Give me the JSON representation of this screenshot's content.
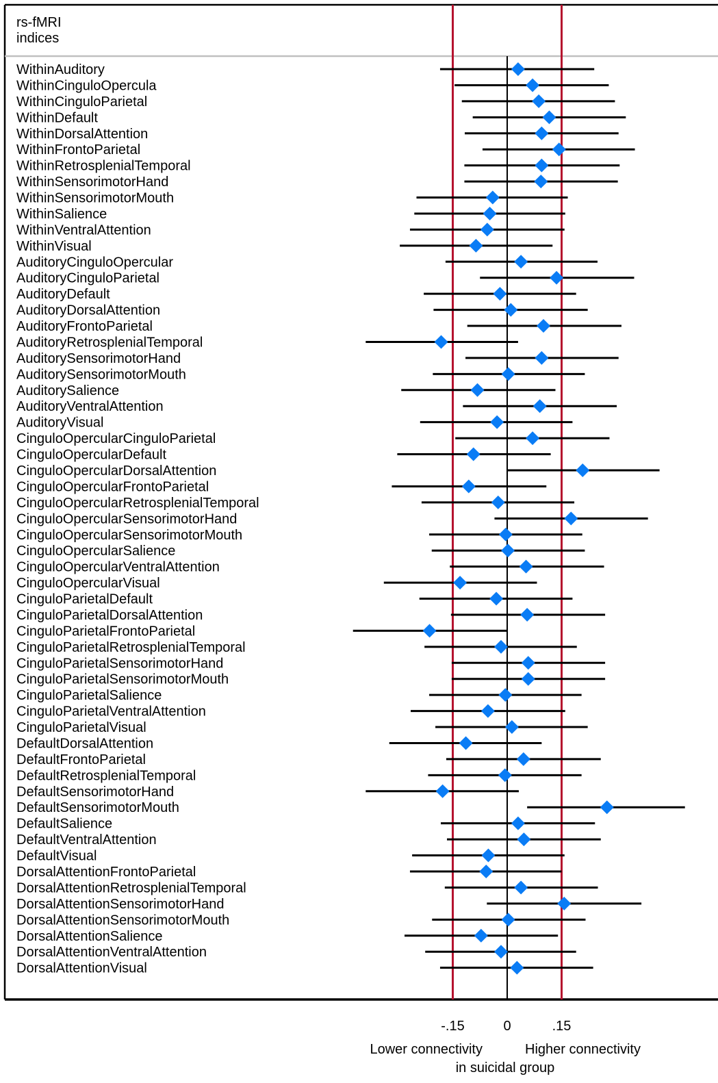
{
  "chart_data": {
    "type": "forest",
    "header": [
      "rs-fMRI",
      "indices"
    ],
    "xlim": [
      -0.405,
      0.5
    ],
    "reference_lines": [
      -0.15,
      0.15
    ],
    "zero_line": 0,
    "x_ticks": [
      "-.15",
      "0",
      ".15"
    ],
    "x_tick_values": [
      -0.15,
      0,
      0.15
    ],
    "annotations": {
      "left": "Lower connectivity",
      "right": "Higher connectivity",
      "bottom": "in suicidal group"
    },
    "colors": {
      "marker": "#0a7cf5",
      "reference": "#b5122e",
      "interval": "#000000",
      "separator": "#c0c0c0"
    },
    "rows": [
      {
        "label": "WithinAuditory",
        "est": 0.03,
        "lo": -0.185,
        "hi": 0.24
      },
      {
        "label": "WithinCinguloOpercula",
        "est": 0.07,
        "lo": -0.145,
        "hi": 0.28
      },
      {
        "label": "WithinCinguloParietal",
        "est": 0.087,
        "lo": -0.125,
        "hi": 0.297
      },
      {
        "label": "WithinDefault",
        "est": 0.116,
        "lo": -0.095,
        "hi": 0.327
      },
      {
        "label": "WithinDorsalAttention",
        "est": 0.095,
        "lo": -0.117,
        "hi": 0.307
      },
      {
        "label": "WithinFrontoParietal",
        "est": 0.143,
        "lo": -0.068,
        "hi": 0.352
      },
      {
        "label": "WithinRetrosplenialTemporal",
        "est": 0.095,
        "lo": -0.118,
        "hi": 0.31
      },
      {
        "label": "WithinSensorimotorHand",
        "est": 0.093,
        "lo": -0.118,
        "hi": 0.305
      },
      {
        "label": "WithinSensorimotorMouth",
        "est": -0.04,
        "lo": -0.25,
        "hi": 0.167
      },
      {
        "label": "WithinSalience",
        "est": -0.048,
        "lo": -0.256,
        "hi": 0.16
      },
      {
        "label": "WithinVentralAttention",
        "est": -0.055,
        "lo": -0.268,
        "hi": 0.158
      },
      {
        "label": "WithinVisual",
        "est": -0.086,
        "lo": -0.296,
        "hi": 0.125
      },
      {
        "label": "AuditoryCinguloOpercular",
        "est": 0.038,
        "lo": -0.17,
        "hi": 0.249
      },
      {
        "label": "AuditoryCinguloParietal",
        "est": 0.136,
        "lo": -0.075,
        "hi": 0.35
      },
      {
        "label": "AuditoryDefault",
        "est": -0.02,
        "lo": -0.23,
        "hi": 0.19
      },
      {
        "label": "AuditoryDorsalAttention",
        "est": 0.01,
        "lo": -0.203,
        "hi": 0.222
      },
      {
        "label": "AuditoryFrontoParietal",
        "est": 0.1,
        "lo": -0.11,
        "hi": 0.315
      },
      {
        "label": "AuditoryRetrosplenialTemporal",
        "est": -0.182,
        "lo": -0.39,
        "hi": 0.03
      },
      {
        "label": "AuditorySensorimotorHand",
        "est": 0.095,
        "lo": -0.115,
        "hi": 0.307
      },
      {
        "label": "AuditorySensorimotorMouth",
        "est": 0.003,
        "lo": -0.205,
        "hi": 0.214
      },
      {
        "label": "AuditorySalience",
        "est": -0.082,
        "lo": -0.292,
        "hi": 0.133
      },
      {
        "label": "AuditoryVentralAttention",
        "est": 0.09,
        "lo": -0.122,
        "hi": 0.302
      },
      {
        "label": "AuditoryVisual",
        "est": -0.028,
        "lo": -0.24,
        "hi": 0.18
      },
      {
        "label": "CinguloOpercularCinguloParietal",
        "est": 0.07,
        "lo": -0.143,
        "hi": 0.282
      },
      {
        "label": "CinguloOpercularDefault",
        "est": -0.093,
        "lo": -0.303,
        "hi": 0.12
      },
      {
        "label": "CinguloOpercularDorsalAttention",
        "est": 0.208,
        "lo": 0.0,
        "hi": 0.42
      },
      {
        "label": "CinguloOpercularFrontoParietal",
        "est": -0.106,
        "lo": -0.318,
        "hi": 0.108
      },
      {
        "label": "CinguloOpercularRetrosplenialTemporal",
        "est": -0.025,
        "lo": -0.236,
        "hi": 0.185
      },
      {
        "label": "CinguloOpercularSensorimotorHand",
        "est": 0.176,
        "lo": -0.035,
        "hi": 0.388
      },
      {
        "label": "CinguloOpercularSensorimotorMouth",
        "est": -0.004,
        "lo": -0.215,
        "hi": 0.207
      },
      {
        "label": "CinguloOpercularSalience",
        "est": 0.002,
        "lo": -0.208,
        "hi": 0.214
      },
      {
        "label": "CinguloOpercularVentralAttention",
        "est": 0.052,
        "lo": -0.158,
        "hi": 0.267
      },
      {
        "label": "CinguloOpercularVisual",
        "est": -0.13,
        "lo": -0.34,
        "hi": 0.082
      },
      {
        "label": "CinguloParietalDefault",
        "est": -0.03,
        "lo": -0.242,
        "hi": 0.18
      },
      {
        "label": "CinguloParietalDorsalAttention",
        "est": 0.055,
        "lo": -0.155,
        "hi": 0.27
      },
      {
        "label": "CinguloParietalFrontoParietal",
        "est": -0.214,
        "lo": -0.425,
        "hi": 0.0
      },
      {
        "label": "CinguloParietalRetrosplenialTemporal",
        "est": -0.017,
        "lo": -0.228,
        "hi": 0.192
      },
      {
        "label": "CinguloParietalSensorimotorHand",
        "est": 0.058,
        "lo": -0.153,
        "hi": 0.27
      },
      {
        "label": "CinguloParietalSensorimotorMouth",
        "est": 0.058,
        "lo": -0.153,
        "hi": 0.27
      },
      {
        "label": "CinguloParietalSalience",
        "est": -0.005,
        "lo": -0.215,
        "hi": 0.205
      },
      {
        "label": "CinguloParietalVentralAttention",
        "est": -0.053,
        "lo": -0.266,
        "hi": 0.16
      },
      {
        "label": "CinguloParietalVisual",
        "est": 0.013,
        "lo": -0.198,
        "hi": 0.222
      },
      {
        "label": "DefaultDorsalAttention",
        "est": -0.114,
        "lo": -0.325,
        "hi": 0.095
      },
      {
        "label": "DefaultFrontoParietal",
        "est": 0.045,
        "lo": -0.168,
        "hi": 0.258
      },
      {
        "label": "DefaultRetrosplenialTemporal",
        "est": -0.006,
        "lo": -0.218,
        "hi": 0.205
      },
      {
        "label": "DefaultSensorimotorHand",
        "est": -0.178,
        "lo": -0.39,
        "hi": 0.032
      },
      {
        "label": "DefaultSensorimotorMouth",
        "est": 0.275,
        "lo": 0.055,
        "hi": 0.49
      },
      {
        "label": "DefaultSalience",
        "est": 0.03,
        "lo": -0.183,
        "hi": 0.242
      },
      {
        "label": "DefaultVentralAttention",
        "est": 0.046,
        "lo": -0.166,
        "hi": 0.258
      },
      {
        "label": "DefaultVisual",
        "est": -0.052,
        "lo": -0.262,
        "hi": 0.158
      },
      {
        "label": "DorsalAttentionFrontoParietal",
        "est": -0.058,
        "lo": -0.268,
        "hi": 0.15
      },
      {
        "label": "DorsalAttentionRetrosplenialTemporal",
        "est": 0.038,
        "lo": -0.172,
        "hi": 0.25
      },
      {
        "label": "DorsalAttentionSensorimotorHand",
        "est": 0.157,
        "lo": -0.056,
        "hi": 0.37
      },
      {
        "label": "DorsalAttentionSensorimotorMouth",
        "est": 0.003,
        "lo": -0.207,
        "hi": 0.216
      },
      {
        "label": "DorsalAttentionSalience",
        "est": -0.072,
        "lo": -0.283,
        "hi": 0.14
      },
      {
        "label": "DorsalAttentionVentralAttention",
        "est": -0.017,
        "lo": -0.226,
        "hi": 0.19
      },
      {
        "label": "DorsalAttentionVisual",
        "est": 0.027,
        "lo": -0.185,
        "hi": 0.237
      }
    ]
  }
}
